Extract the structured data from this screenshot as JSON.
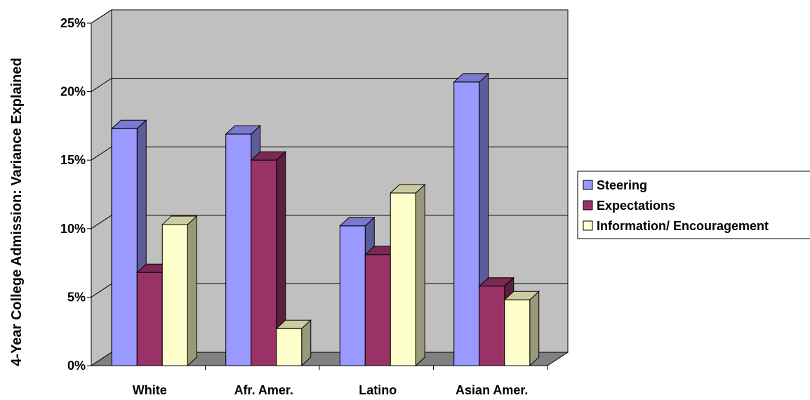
{
  "chart_data": {
    "type": "bar",
    "title": "",
    "xlabel": "",
    "ylabel": "4-Year College Admission:  Variance Explained",
    "ylim": [
      0,
      0.25
    ],
    "y_ticks": [
      "0%",
      "5%",
      "10%",
      "15%",
      "20%",
      "25%"
    ],
    "y_tick_values": [
      0,
      0.05,
      0.1,
      0.15,
      0.2,
      0.25
    ],
    "grid": true,
    "three_d": true,
    "legend_position": "right",
    "categories": [
      "White",
      "Afr. Amer.",
      "Latino",
      "Asian Amer."
    ],
    "series": [
      {
        "name": "Steering",
        "color": "#9999ff",
        "values": [
          0.173,
          0.169,
          0.102,
          0.207
        ]
      },
      {
        "name": "Expectations",
        "color": "#993366",
        "values": [
          0.068,
          0.15,
          0.081,
          0.058
        ]
      },
      {
        "name": "Information/ Encouragement",
        "color": "#ffffcc",
        "values": [
          0.103,
          0.027,
          0.126,
          0.048
        ]
      }
    ],
    "colors": {
      "wall": "#c0c0c0",
      "floor": "#808080",
      "gridline": "#000000"
    }
  }
}
